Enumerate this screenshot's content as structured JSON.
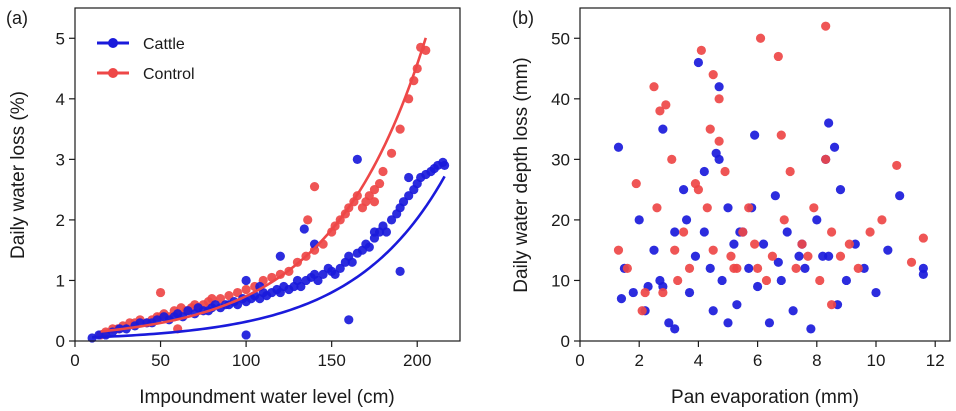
{
  "colors": {
    "cattle": "#1a1adb",
    "control": "#ee4747",
    "axis": "#1a1a1a"
  },
  "chart_data": [
    {
      "type": "scatter",
      "panel_label": "(a)",
      "xlabel": "Impoundment water level (cm)",
      "ylabel": "Daily water loss (%)",
      "xlim": [
        0,
        225
      ],
      "ylim": [
        0,
        5.5
      ],
      "xticks": [
        0,
        50,
        100,
        150,
        200
      ],
      "yticks": [
        0,
        1,
        2,
        3,
        4,
        5
      ],
      "legend": {
        "position": "top-left",
        "entries": [
          "Cattle",
          "Control"
        ]
      },
      "series": [
        {
          "name": "Cattle",
          "color": "#1a1adb",
          "fit": {
            "type": "exponential",
            "a": 0.05,
            "b": 0.0185,
            "x_range": [
              10,
              216
            ]
          },
          "x": [
            10,
            14,
            18,
            22,
            26,
            30,
            35,
            38,
            42,
            45,
            48,
            52,
            55,
            58,
            60,
            63,
            66,
            70,
            72,
            75,
            78,
            80,
            82,
            85,
            88,
            90,
            93,
            95,
            98,
            100,
            100,
            103,
            105,
            108,
            110,
            112,
            115,
            118,
            120,
            122,
            125,
            128,
            130,
            132,
            135,
            138,
            140,
            142,
            145,
            148,
            150,
            152,
            155,
            158,
            160,
            162,
            165,
            168,
            170,
            172,
            175,
            178,
            180,
            182,
            185,
            188,
            190,
            192,
            195,
            198,
            200,
            202,
            205,
            208,
            210,
            212,
            215,
            216,
            195,
            175,
            165,
            160,
            134,
            140,
            100,
            120,
            108,
            190
          ],
          "y": [
            0.05,
            0.1,
            0.1,
            0.15,
            0.2,
            0.2,
            0.25,
            0.3,
            0.3,
            0.3,
            0.35,
            0.4,
            0.35,
            0.4,
            0.45,
            0.4,
            0.5,
            0.45,
            0.55,
            0.5,
            0.5,
            0.55,
            0.6,
            0.55,
            0.6,
            0.6,
            0.65,
            0.6,
            0.7,
            0.65,
            0.1,
            0.7,
            0.75,
            0.7,
            0.8,
            0.75,
            0.8,
            0.85,
            0.8,
            0.9,
            0.85,
            0.9,
            1.0,
            0.9,
            1.0,
            1.05,
            1.1,
            1.0,
            1.1,
            1.2,
            1.15,
            1.1,
            1.2,
            1.3,
            1.4,
            1.3,
            1.45,
            1.5,
            1.6,
            1.55,
            1.7,
            1.8,
            1.9,
            1.8,
            2.0,
            2.1,
            2.2,
            2.3,
            2.4,
            2.5,
            2.6,
            2.7,
            2.75,
            2.8,
            2.85,
            2.9,
            2.95,
            2.9,
            2.7,
            1.8,
            3.0,
            0.35,
            1.85,
            1.6,
            1.0,
            1.4,
            0.9,
            1.15
          ]
        },
        {
          "name": "Control",
          "color": "#ee4747",
          "fit": {
            "type": "exponential",
            "a": 0.12,
            "b": 0.0182,
            "x_range": [
              15,
              205
            ]
          },
          "x": [
            15,
            18,
            22,
            25,
            28,
            32,
            35,
            38,
            42,
            45,
            48,
            50,
            52,
            55,
            58,
            60,
            62,
            65,
            68,
            70,
            72,
            75,
            78,
            80,
            85,
            90,
            95,
            100,
            105,
            110,
            115,
            120,
            125,
            130,
            135,
            140,
            145,
            150,
            152,
            155,
            158,
            160,
            163,
            165,
            168,
            170,
            172,
            175,
            178,
            180,
            185,
            190,
            195,
            198,
            200,
            202,
            205,
            140,
            136,
            175,
            50,
            60
          ],
          "y": [
            0.1,
            0.15,
            0.2,
            0.2,
            0.25,
            0.3,
            0.3,
            0.35,
            0.3,
            0.35,
            0.4,
            0.4,
            0.45,
            0.4,
            0.5,
            0.45,
            0.55,
            0.5,
            0.55,
            0.6,
            0.55,
            0.6,
            0.65,
            0.7,
            0.7,
            0.75,
            0.8,
            0.85,
            0.9,
            1.0,
            1.05,
            1.1,
            1.15,
            1.3,
            1.4,
            1.5,
            1.6,
            1.8,
            1.9,
            2.0,
            2.1,
            2.2,
            2.3,
            2.4,
            2.2,
            2.3,
            2.4,
            2.5,
            2.6,
            2.8,
            3.1,
            3.5,
            4.0,
            4.3,
            4.5,
            4.85,
            4.8,
            2.55,
            2.0,
            2.3,
            0.8,
            0.2
          ]
        }
      ]
    },
    {
      "type": "scatter",
      "panel_label": "(b)",
      "xlabel": "Pan evaporation (mm)",
      "ylabel": "Daily water depth loss (mm)",
      "xlim": [
        0,
        12.5
      ],
      "ylim": [
        0,
        55
      ],
      "xticks": [
        0,
        2,
        4,
        6,
        8,
        10,
        12
      ],
      "yticks": [
        0,
        10,
        20,
        30,
        40,
        50
      ],
      "series": [
        {
          "name": "Cattle",
          "color": "#1a1adb",
          "x": [
            1.3,
            1.5,
            1.8,
            2.0,
            2.2,
            2.5,
            2.7,
            2.8,
            3.0,
            3.2,
            3.5,
            3.7,
            3.9,
            4.0,
            4.2,
            4.4,
            4.5,
            4.7,
            4.8,
            5.0,
            5.2,
            5.3,
            5.5,
            5.7,
            5.9,
            6.0,
            6.2,
            6.4,
            6.6,
            6.8,
            7.0,
            7.2,
            7.4,
            7.6,
            7.8,
            8.0,
            8.2,
            8.4,
            8.6,
            8.8,
            9.0,
            9.3,
            9.6,
            10.0,
            10.4,
            10.8,
            11.6,
            4.2,
            4.7,
            5.8,
            8.3,
            8.4,
            2.8,
            3.2,
            5.0,
            6.7,
            7.5,
            4.6,
            3.6,
            8.7,
            2.3,
            5.4,
            1.4,
            11.6
          ],
          "y": [
            32,
            12,
            8,
            20,
            5,
            15,
            10,
            35,
            3,
            18,
            25,
            8,
            14,
            46,
            28,
            12,
            5,
            30,
            10,
            22,
            16,
            6,
            18,
            12,
            34,
            9,
            16,
            3,
            24,
            10,
            18,
            5,
            14,
            12,
            2,
            20,
            14,
            36,
            32,
            25,
            10,
            16,
            12,
            8,
            15,
            24,
            12,
            18,
            42,
            22,
            30,
            14,
            9,
            2,
            3,
            13,
            16,
            31,
            20,
            6,
            9,
            18,
            7,
            11
          ]
        },
        {
          "name": "Control",
          "color": "#ee4747",
          "x": [
            1.3,
            1.6,
            1.9,
            2.2,
            2.5,
            2.7,
            2.9,
            3.1,
            3.3,
            3.5,
            3.7,
            3.9,
            4.1,
            4.3,
            4.5,
            4.7,
            4.9,
            5.1,
            5.3,
            5.5,
            5.7,
            5.9,
            6.1,
            6.3,
            6.5,
            6.7,
            6.9,
            7.1,
            7.3,
            7.5,
            7.7,
            7.9,
            8.1,
            8.3,
            8.5,
            8.8,
            9.1,
            9.4,
            9.8,
            10.2,
            10.7,
            11.2,
            11.6,
            2.6,
            2.8,
            3.2,
            4.0,
            4.4,
            4.7,
            5.2,
            6.0,
            6.8,
            8.3,
            8.5,
            4.5,
            2.1
          ],
          "y": [
            15,
            12,
            26,
            8,
            42,
            38,
            39,
            30,
            10,
            18,
            12,
            26,
            48,
            22,
            44,
            40,
            28,
            14,
            12,
            18,
            22,
            16,
            50,
            10,
            14,
            47,
            20,
            28,
            12,
            16,
            14,
            22,
            10,
            52,
            18,
            14,
            16,
            12,
            18,
            20,
            29,
            13,
            17,
            22,
            8,
            15,
            25,
            35,
            33,
            12,
            12,
            34,
            30,
            6,
            15,
            5
          ]
        }
      ]
    }
  ]
}
